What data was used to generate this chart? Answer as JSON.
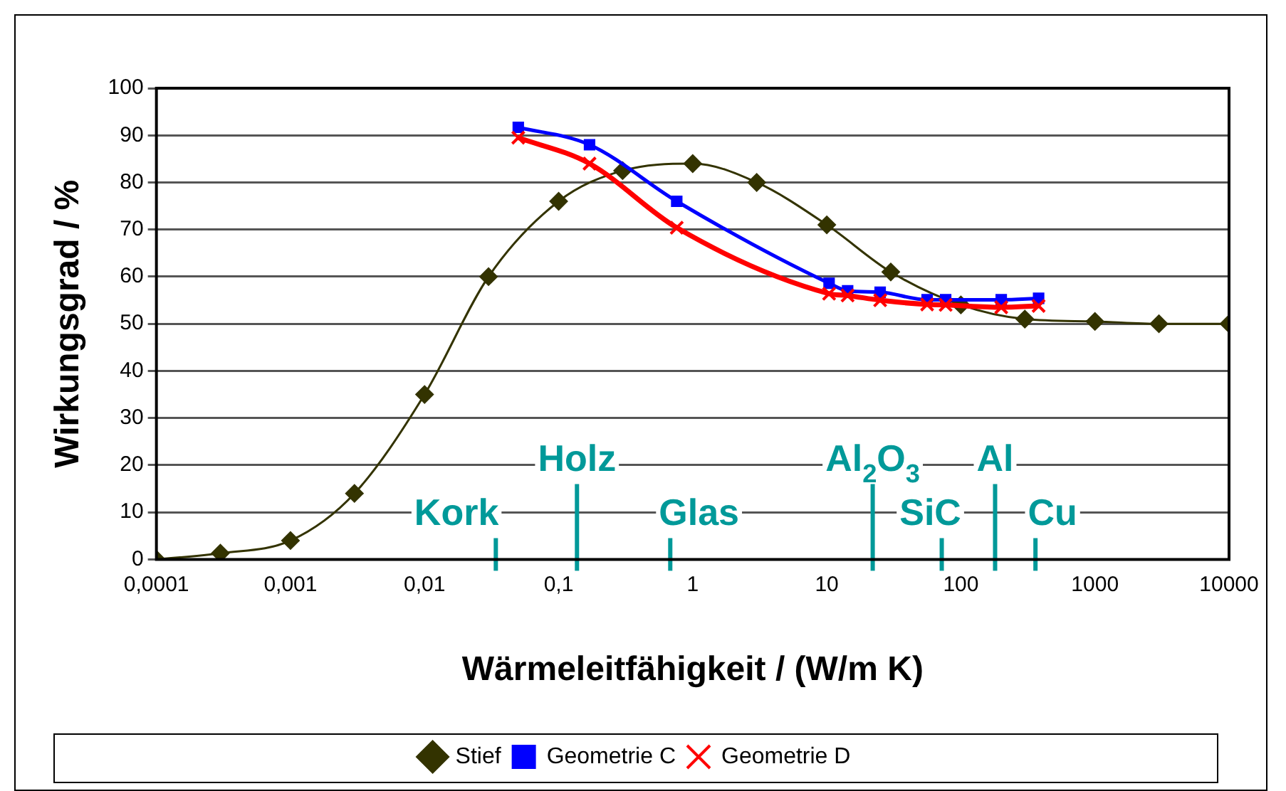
{
  "chart_data": {
    "type": "line",
    "xlabel": "Wärmeleitfähigkeit / (W/m K)",
    "ylabel": "Wirkungsgrad / %",
    "log": "x",
    "xlim": [
      0.0001,
      10000
    ],
    "xticks": [
      {
        "value": 0.0001,
        "label": "0,0001"
      },
      {
        "value": 0.001,
        "label": "0,001"
      },
      {
        "value": 0.01,
        "label": "0,01"
      },
      {
        "value": 0.1,
        "label": "0,1"
      },
      1,
      10,
      100,
      1000,
      10000
    ],
    "ylim": [
      0,
      100
    ],
    "yticks": [
      0,
      10,
      20,
      30,
      40,
      50,
      60,
      70,
      80,
      90,
      100
    ],
    "grid": "y",
    "legend": "bottom",
    "series": [
      {
        "name": "Stief",
        "color": "#333300",
        "marker": "diamond",
        "x": [
          0.0001,
          0.0003,
          0.001,
          0.003,
          0.01,
          0.03,
          0.1,
          0.3,
          1,
          3,
          10,
          30,
          100,
          300,
          1000,
          3000,
          10000
        ],
        "values": [
          0,
          1.3,
          4,
          14,
          35,
          60,
          76,
          82.5,
          84,
          80,
          71,
          61,
          54,
          51,
          50.5,
          50,
          50
        ]
      },
      {
        "name": "Geometrie C",
        "color": "#0000ff",
        "marker": "square",
        "x": [
          0.05,
          0.17,
          0.76,
          10.4,
          14.3,
          25,
          56,
          77,
          200,
          380
        ],
        "values": [
          91.7,
          88,
          76,
          58.6,
          57,
          56.7,
          55.1,
          55.1,
          55.1,
          55.4
        ]
      },
      {
        "name": "Geometrie D",
        "color": "#ff0000",
        "marker": "cross",
        "x": [
          0.05,
          0.17,
          0.76,
          10.4,
          14.3,
          25,
          56,
          77,
          200,
          380
        ],
        "values": [
          89.5,
          84,
          70.4,
          56.4,
          56,
          55,
          54.1,
          54,
          53.5,
          53.8
        ]
      }
    ],
    "ref_lines": [
      {
        "axis": "x",
        "value": 0.034,
        "label": "Kork",
        "color": "#009999"
      },
      {
        "axis": "x",
        "value": 0.137,
        "label": "Holz",
        "color": "#009999"
      },
      {
        "axis": "x",
        "value": 0.68,
        "label": "Glas",
        "color": "#009999"
      },
      {
        "axis": "x",
        "value": 22,
        "label": "Al$_{2}$O$_{3}$",
        "color": "#009999"
      },
      {
        "axis": "x",
        "value": 72,
        "label": "SiC",
        "color": "#009999"
      },
      {
        "axis": "x",
        "value": 180,
        "label": "Al",
        "color": "#009999"
      },
      {
        "axis": "x",
        "value": 360,
        "label": "Cu",
        "color": "#009999"
      }
    ]
  }
}
